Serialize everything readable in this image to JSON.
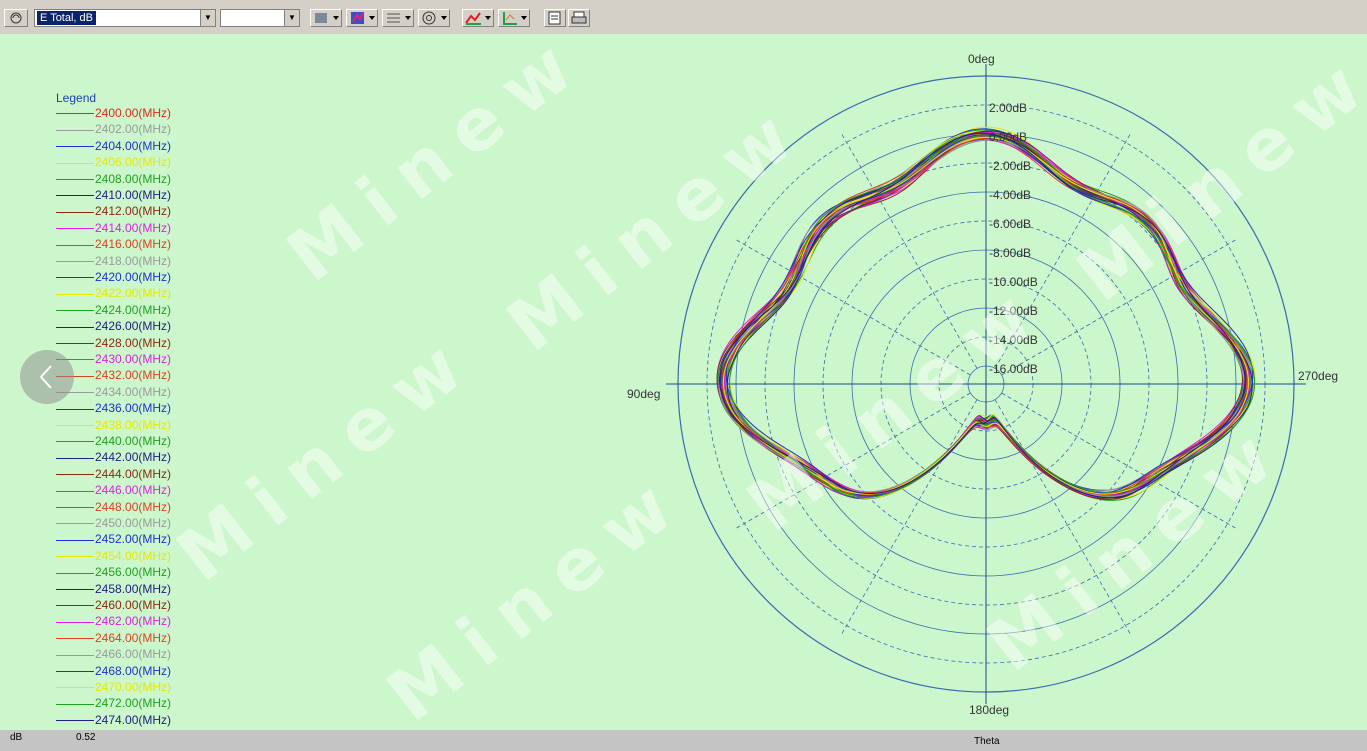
{
  "toolbar": {
    "left_icon": "polar-view-icon",
    "quantity_select": "E Total, dB",
    "second_select": "",
    "buttons": [
      "display-icon",
      "color-map-icon",
      "grid-icon",
      "polar-icon",
      "curve-icon",
      "axis-icon",
      "copy-icon",
      "print-icon"
    ]
  },
  "legend": {
    "title": "Legend",
    "items": [
      {
        "label": "2400.00(MHz)",
        "color": "#e02a20"
      },
      {
        "label": "2402.00(MHz)",
        "color": "#9a9a9a"
      },
      {
        "label": "2404.00(MHz)",
        "color": "#2030d0"
      },
      {
        "label": "2406.00(MHz)",
        "color": "#e8e800"
      },
      {
        "label": "2408.00(MHz)",
        "color": "#20a020"
      },
      {
        "label": "2410.00(MHz)",
        "color": "#202080"
      },
      {
        "label": "2412.00(MHz)",
        "color": "#8a2a10"
      },
      {
        "label": "2414.00(MHz)",
        "color": "#e020e0"
      },
      {
        "label": "2416.00(MHz)",
        "color": "#e04020"
      },
      {
        "label": "2418.00(MHz)",
        "color": "#9a9a9a"
      },
      {
        "label": "2420.00(MHz)",
        "color": "#2030d0"
      },
      {
        "label": "2422.00(MHz)",
        "color": "#e8e800"
      },
      {
        "label": "2424.00(MHz)",
        "color": "#20a020"
      },
      {
        "label": "2426.00(MHz)",
        "color": "#202080"
      },
      {
        "label": "2428.00(MHz)",
        "color": "#8a2a10"
      },
      {
        "label": "2430.00(MHz)",
        "color": "#e020e0"
      },
      {
        "label": "2432.00(MHz)",
        "color": "#e04020"
      },
      {
        "label": "2434.00(MHz)",
        "color": "#9a9a9a"
      },
      {
        "label": "2436.00(MHz)",
        "color": "#2030d0"
      },
      {
        "label": "2438.00(MHz)",
        "color": "#e8e800"
      },
      {
        "label": "2440.00(MHz)",
        "color": "#20a020"
      },
      {
        "label": "2442.00(MHz)",
        "color": "#202080"
      },
      {
        "label": "2444.00(MHz)",
        "color": "#8a2a10"
      },
      {
        "label": "2446.00(MHz)",
        "color": "#e020e0"
      },
      {
        "label": "2448.00(MHz)",
        "color": "#e04020"
      },
      {
        "label": "2450.00(MHz)",
        "color": "#9a9a9a"
      },
      {
        "label": "2452.00(MHz)",
        "color": "#2030d0"
      },
      {
        "label": "2454.00(MHz)",
        "color": "#e8e800"
      },
      {
        "label": "2456.00(MHz)",
        "color": "#20a020"
      },
      {
        "label": "2458.00(MHz)",
        "color": "#202080"
      },
      {
        "label": "2460.00(MHz)",
        "color": "#8a2a10"
      },
      {
        "label": "2462.00(MHz)",
        "color": "#e020e0"
      },
      {
        "label": "2464.00(MHz)",
        "color": "#e04020"
      },
      {
        "label": "2466.00(MHz)",
        "color": "#9a9a9a"
      },
      {
        "label": "2468.00(MHz)",
        "color": "#2030d0"
      },
      {
        "label": "2470.00(MHz)",
        "color": "#e8e800"
      },
      {
        "label": "2472.00(MHz)",
        "color": "#20a020"
      },
      {
        "label": "2474.00(MHz)",
        "color": "#202080"
      }
    ]
  },
  "polar": {
    "angle_labels": {
      "top": "0deg",
      "left": "90deg",
      "right": "270deg",
      "bottom": "180deg"
    },
    "radial_labels": [
      "2.00dB",
      "0.00dB",
      "-2.00dB",
      "-4.00dB",
      "-6.00dB",
      "-8.00dB",
      "-10.00dB",
      "-12.00dB",
      "-14.00dB",
      "-16.00dB"
    ],
    "colors": {
      "circle": "#1a4a8a",
      "grid": "#3a6ab0",
      "background": "#ccf6cc"
    }
  },
  "status": {
    "unit": "dB",
    "value": "0.52",
    "axis": "Theta"
  },
  "watermark": "Minew",
  "nav_button_icon": "chevron-left-icon"
}
